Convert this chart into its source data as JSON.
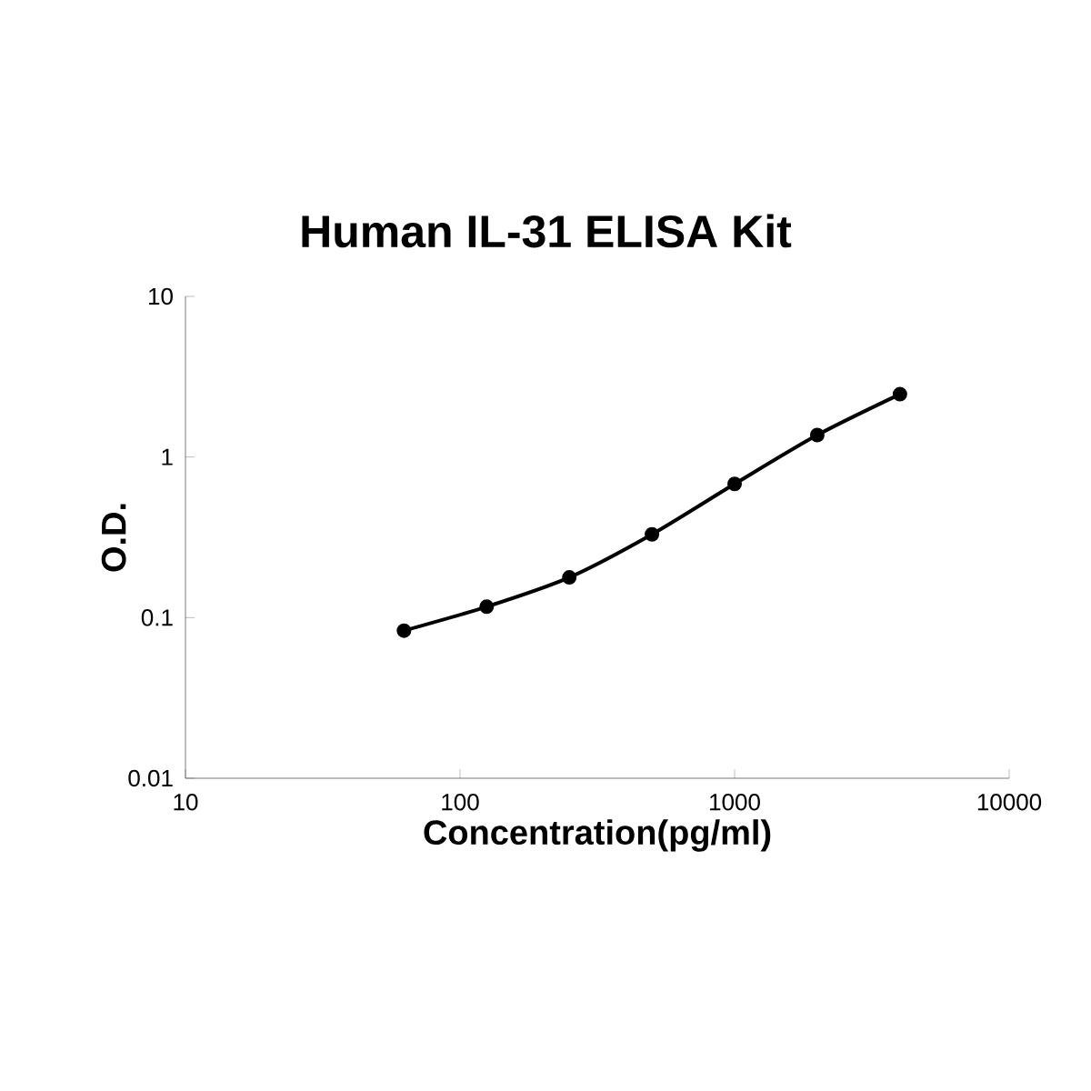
{
  "chart_data": {
    "type": "line",
    "title": "Human IL-31 ELISA Kit",
    "xlabel": "Concentration(pg/ml)",
    "ylabel": "O.D.",
    "log": "xy",
    "marker": "circle",
    "line_style": "solid",
    "xlim": [
      10,
      10000
    ],
    "xticks": [
      10,
      100,
      1000,
      10000
    ],
    "ylim": [
      0.01,
      10
    ],
    "yticks": [
      0.01,
      0.1,
      1,
      10
    ],
    "series": [
      {
        "color": "#000000",
        "x": [
          62.5,
          125,
          250,
          500,
          1000,
          2000,
          4000
        ],
        "values": [
          0.083,
          0.117,
          0.178,
          0.33,
          0.68,
          1.37,
          2.46
        ]
      }
    ]
  }
}
